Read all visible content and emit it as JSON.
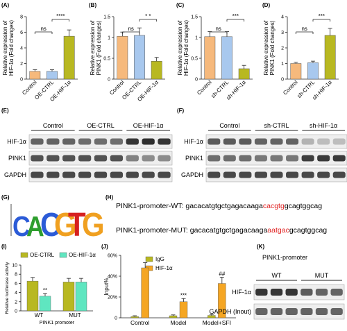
{
  "panels": {
    "A": {
      "label": "(A)"
    },
    "B": {
      "label": "(B)"
    },
    "C": {
      "label": "(C)"
    },
    "D": {
      "label": "(D)"
    },
    "E": {
      "label": "(E)"
    },
    "F": {
      "label": "(F)"
    },
    "G": {
      "label": "(G)"
    },
    "H": {
      "label": "(H)"
    },
    "I": {
      "label": "(I)"
    },
    "J": {
      "label": "(J)"
    },
    "K": {
      "label": "(K)"
    }
  },
  "colors": {
    "control": "#f6b97c",
    "ctrl": "#a8c8ee",
    "treat": "#b8b821",
    "luc_oe_ctrl": "#b8b821",
    "luc_oe_hif": "#5fe6c0",
    "igg": "#b8b821",
    "hif": "#f5a623",
    "seq_highlight": "#e02020"
  },
  "chart_data": [
    {
      "id": "A",
      "type": "bar",
      "ylabel": "Relative expression of HIF-1α (Fold changes)",
      "categories": [
        "Control",
        "OE-CTRL",
        "OE-HIF-1α"
      ],
      "values": [
        1.0,
        1.0,
        5.5
      ],
      "errors": [
        0.2,
        0.2,
        0.8
      ],
      "ylim": [
        0,
        8
      ],
      "yticks": [
        0,
        2,
        4,
        6,
        8
      ],
      "comparisons": [
        {
          "text": "ns",
          "from": 0,
          "to": 1
        },
        {
          "text": "****",
          "from": 1,
          "to": 2
        }
      ]
    },
    {
      "id": "B",
      "type": "bar",
      "ylabel": "Relative expression of PINK1 (Fold changes)",
      "categories": [
        "Control",
        "OE-CTRL",
        "OE-HIF-1α"
      ],
      "values": [
        1.03,
        1.05,
        0.43
      ],
      "errors": [
        0.1,
        0.18,
        0.09
      ],
      "ylim": [
        0,
        1.5
      ],
      "yticks": [
        0.0,
        0.5,
        1.0,
        1.5
      ],
      "comparisons": [
        {
          "text": "ns",
          "from": 0,
          "to": 1
        },
        {
          "text": "* *",
          "from": 1,
          "to": 2
        }
      ]
    },
    {
      "id": "C",
      "type": "bar",
      "ylabel": "Relative expression of HIF-1α (Fold changes)",
      "categories": [
        "Control",
        "sh-CTRL",
        "sh-HIF-1α"
      ],
      "values": [
        1.02,
        1.02,
        0.25
      ],
      "errors": [
        0.12,
        0.12,
        0.08
      ],
      "ylim": [
        0,
        1.5
      ],
      "yticks": [
        0.0,
        0.5,
        1.0,
        1.5
      ],
      "comparisons": [
        {
          "text": "ns",
          "from": 0,
          "to": 1
        },
        {
          "text": "***",
          "from": 1,
          "to": 2
        }
      ]
    },
    {
      "id": "D",
      "type": "bar",
      "ylabel": "Relative expression of PINK1 (Fold changes)",
      "categories": [
        "Control",
        "sh-CTRL",
        "sh-HIF-1α"
      ],
      "values": [
        1.0,
        1.05,
        2.8
      ],
      "errors": [
        0.08,
        0.1,
        0.45
      ],
      "ylim": [
        0,
        4
      ],
      "yticks": [
        0,
        1,
        2,
        3,
        4
      ],
      "comparisons": [
        {
          "text": "ns",
          "from": 0,
          "to": 1
        },
        {
          "text": "***",
          "from": 1,
          "to": 2
        }
      ]
    },
    {
      "id": "I",
      "type": "bar",
      "ylabel": "Relative luciferase activity",
      "xlabel": "PINK1 promoter",
      "categories": [
        "WT",
        "MUT"
      ],
      "series": [
        {
          "name": "OE-CTRL",
          "values": [
            6.5,
            6.3
          ],
          "errors": [
            0.8,
            0.8
          ]
        },
        {
          "name": "OE-HIF-1α",
          "values": [
            3.2,
            6.3
          ],
          "errors": [
            0.6,
            0.8
          ]
        }
      ],
      "ylim": [
        0,
        10
      ],
      "yticks": [
        0,
        2,
        4,
        6,
        8,
        10
      ],
      "annotations": [
        "**"
      ]
    },
    {
      "id": "J",
      "type": "bar",
      "ylabel": "Input%",
      "categories": [
        "Control",
        "Model",
        "Model+SFI"
      ],
      "series": [
        {
          "name": "IgG",
          "values": [
            1.2,
            2.0,
            2.3
          ],
          "errors": [
            0.8,
            0.8,
            0.9
          ]
        },
        {
          "name": "HIF-1α",
          "values": [
            48,
            15.5,
            33
          ]
        },
        {
          "name": "HIF-1α",
          "values": [
            48,
            15.5,
            33
          ],
          "errors": [
            5,
            3,
            6
          ]
        }
      ],
      "ylim": [
        0,
        60
      ],
      "yticks": [
        "0",
        "20%",
        "40%",
        "60%"
      ],
      "annotations": [
        "***",
        "##"
      ]
    }
  ],
  "blot_E": {
    "groups": [
      "Control",
      "OE-CTRL",
      "OE-HIF-1α"
    ],
    "rows": [
      {
        "label": "HIF-1α",
        "intensity": [
          0.7,
          0.7,
          0.7,
          0.65,
          0.65,
          0.65,
          0.95,
          0.98,
          0.95
        ]
      },
      {
        "label": "PINK1",
        "intensity": [
          0.8,
          0.8,
          0.8,
          0.8,
          0.8,
          0.8,
          0.55,
          0.5,
          0.5
        ]
      },
      {
        "label": "GAPDH",
        "intensity": [
          0.85,
          0.85,
          0.85,
          0.85,
          0.85,
          0.85,
          0.85,
          0.85,
          0.85
        ]
      }
    ]
  },
  "blot_F": {
    "groups": [
      "Control",
      "sh-CTRL",
      "sh-HIF-1α"
    ],
    "rows": [
      {
        "label": "HIF-1α",
        "intensity": [
          0.75,
          0.75,
          0.75,
          0.7,
          0.7,
          0.7,
          0.3,
          0.25,
          0.25
        ]
      },
      {
        "label": "PINK1",
        "intensity": [
          0.65,
          0.65,
          0.65,
          0.6,
          0.6,
          0.6,
          0.9,
          0.92,
          0.92
        ]
      },
      {
        "label": "GAPDH",
        "intensity": [
          0.85,
          0.85,
          0.85,
          0.85,
          0.85,
          0.85,
          0.85,
          0.85,
          0.85
        ]
      }
    ]
  },
  "motif": {
    "letters": [
      "C",
      "A",
      "C",
      "G",
      "T",
      "G"
    ]
  },
  "sequences": {
    "wt_label": "PINK1-promoter-WT: ",
    "wt_prefix": "gacacatgtgctgagacaaga",
    "wt_site": "cacgtg",
    "wt_suffix": "gcagtggcag",
    "mut_label": "PINK1-promoter-MUT: ",
    "mut_prefix": "gacacatgtgctgagacaaga",
    "mut_site": "aatgac",
    "mut_suffix": "gcagtggcag"
  },
  "blot_K": {
    "title": "PINK1-promoter",
    "groups": [
      "WT",
      "MUT"
    ],
    "rows": [
      {
        "label": "HIF-1α",
        "intensity": [
          0.95,
          0.95,
          0.95,
          0.75,
          0.7,
          0.7
        ]
      },
      {
        "label": "GAPDH (Inout)",
        "intensity": [
          0.7,
          0.7,
          0.7,
          0.7,
          0.7,
          0.7
        ]
      }
    ]
  }
}
